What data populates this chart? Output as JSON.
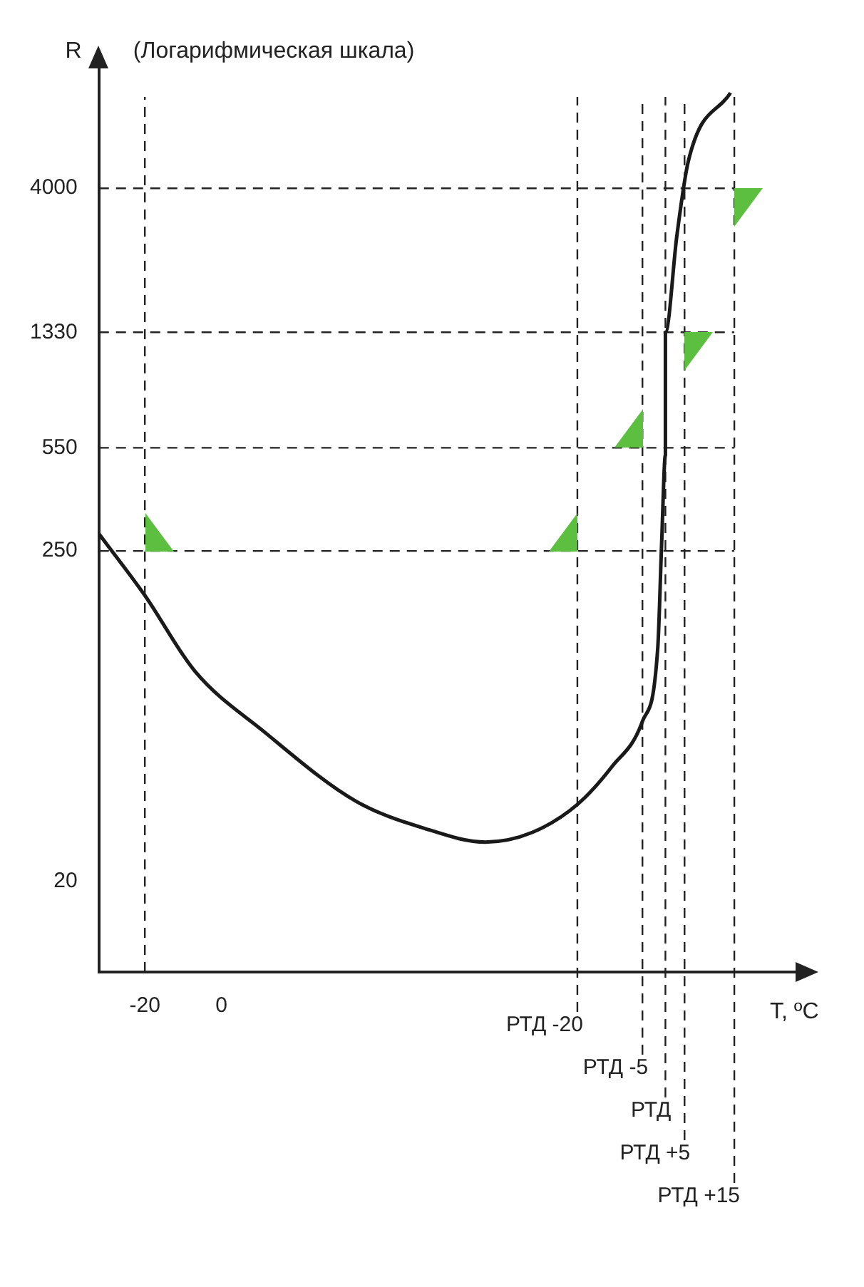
{
  "chart_data": {
    "type": "line",
    "ylabel": "R",
    "xlabel": "T, ºC",
    "annotations": [
      "(Логарифмическая шкала)"
    ],
    "log": "y",
    "grid": false,
    "legend": false,
    "marker": "none",
    "line_style": "solid",
    "x": [
      -32,
      -20,
      -7,
      11,
      35,
      53,
      69,
      81,
      93,
      102,
      110,
      114,
      115,
      116,
      116,
      119,
      122,
      133
    ],
    "series": [
      {
        "color": "#1a1a1a",
        "values": [
          285,
          178,
          100,
          63,
          37,
          30,
          27,
          29,
          36,
          48,
          68,
          119,
          262,
          520,
          1330,
          2790,
          4930,
          8300
        ]
      }
    ],
    "xlim": [
      -32,
      150
    ],
    "xticks": [
      -20,
      0
    ],
    "ylim": [
      10,
      10000
    ],
    "yticks": [
      20,
      250,
      550,
      1330,
      4000
    ],
    "ref_lines": [
      {
        "axis": "y",
        "value": 250,
        "line_style": "dashed"
      },
      {
        "axis": "y",
        "value": 550,
        "line_style": "dashed"
      },
      {
        "axis": "y",
        "value": 1330,
        "line_style": "dashed"
      },
      {
        "axis": "y",
        "value": 4000,
        "line_style": "dashed"
      },
      {
        "axis": "x",
        "value": -20,
        "line_style": "dashed"
      },
      {
        "axis": "x",
        "value": 93,
        "label": "РТД -20",
        "line_style": "dashed"
      },
      {
        "axis": "x",
        "value": 110,
        "label": "РТД -5",
        "line_style": "dashed"
      },
      {
        "axis": "x",
        "value": 116,
        "label": "РТД",
        "line_style": "dashed"
      },
      {
        "axis": "x",
        "value": 121,
        "label": "РТД +5",
        "line_style": "dashed"
      },
      {
        "axis": "x",
        "value": 134,
        "label": "РТД +15",
        "line_style": "dashed"
      }
    ]
  }
}
